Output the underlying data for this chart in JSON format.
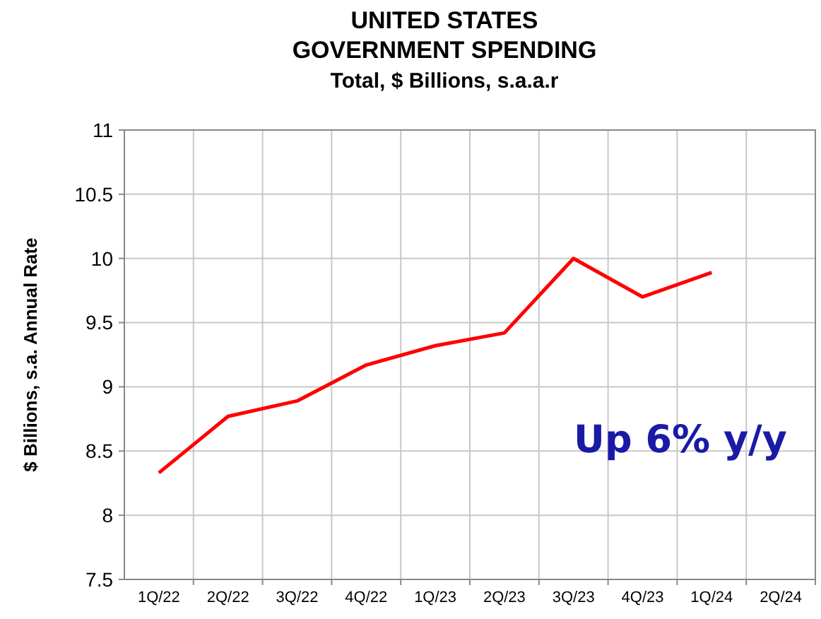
{
  "chart_data": {
    "type": "line",
    "title": "UNITED STATES\nGOVERNMENT SPENDING\nTotal, $ Billions, s.a.a.r",
    "ylabel": "$ Billions, s.a. Annual Rate",
    "categories": [
      "1Q/22",
      "2Q/22",
      "3Q/22",
      "4Q/22",
      "1Q/23",
      "2Q/23",
      "3Q/23",
      "4Q/23",
      "1Q/24",
      "2Q/24"
    ],
    "series": [
      {
        "color": "#ff0000",
        "values": [
          8.33,
          8.77,
          8.89,
          9.17,
          9.32,
          9.42,
          10.0,
          9.7,
          9.89,
          null
        ]
      }
    ],
    "ylim": [
      7.5,
      11
    ],
    "yticks": [
      7.5,
      8,
      8.5,
      9,
      9.5,
      10,
      10.5,
      11
    ],
    "grid": true,
    "marker": "none",
    "annotations": [
      "Up 6% y/y"
    ]
  }
}
